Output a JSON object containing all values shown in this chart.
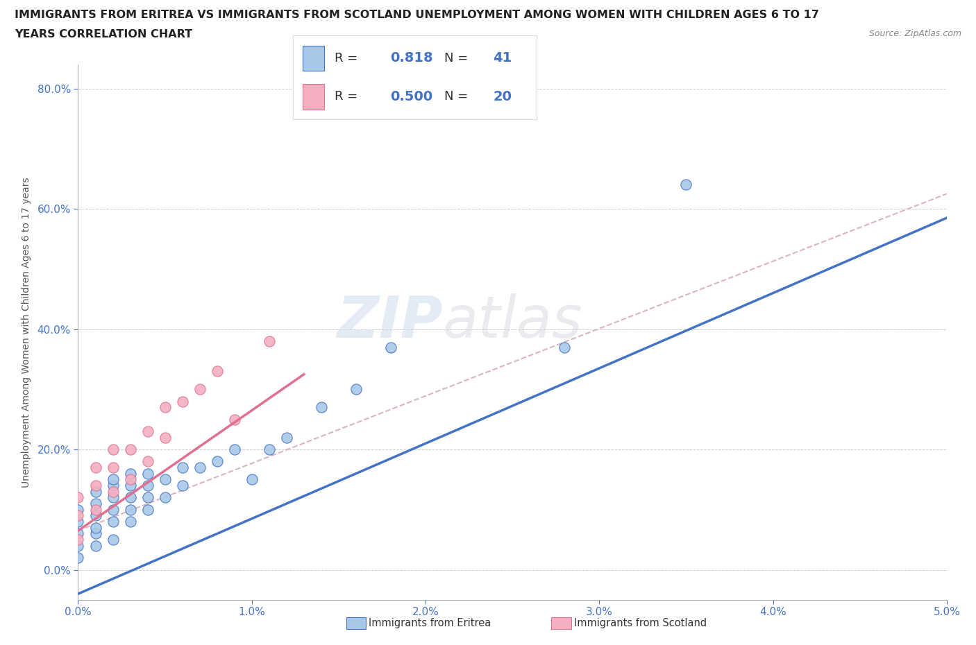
{
  "title_line1": "IMMIGRANTS FROM ERITREA VS IMMIGRANTS FROM SCOTLAND UNEMPLOYMENT AMONG WOMEN WITH CHILDREN AGES 6 TO 17",
  "title_line2": "YEARS CORRELATION CHART",
  "source": "Source: ZipAtlas.com",
  "xlabel": "",
  "ylabel": "Unemployment Among Women with Children Ages 6 to 17 years",
  "xlim": [
    0.0,
    0.05
  ],
  "ylim": [
    -0.05,
    0.84
  ],
  "xticks": [
    0.0,
    0.01,
    0.02,
    0.03,
    0.04,
    0.05
  ],
  "xticklabels": [
    "0.0%",
    "1.0%",
    "2.0%",
    "3.0%",
    "4.0%",
    "5.0%"
  ],
  "yticks": [
    0.0,
    0.2,
    0.4,
    0.6,
    0.8
  ],
  "yticklabels": [
    "0.0%",
    "20.0%",
    "40.0%",
    "60.0%",
    "80.0%"
  ],
  "eritrea_R": 0.818,
  "eritrea_N": 41,
  "scotland_R": 0.5,
  "scotland_N": 20,
  "eritrea_color": "#a8c8e8",
  "scotland_color": "#f4b0c0",
  "eritrea_line_color": "#4472c4",
  "scotland_line_color": "#e07090",
  "diagonal_line_color": "#d4a0b0",
  "background_color": "#ffffff",
  "watermark_zip": "ZIP",
  "watermark_atlas": "atlas",
  "legend_eritrea": "Immigrants from Eritrea",
  "legend_scotland": "Immigrants from Scotland",
  "eritrea_scatter_x": [
    0.0,
    0.0,
    0.0,
    0.0,
    0.0,
    0.001,
    0.001,
    0.001,
    0.001,
    0.001,
    0.001,
    0.002,
    0.002,
    0.002,
    0.002,
    0.002,
    0.002,
    0.003,
    0.003,
    0.003,
    0.003,
    0.003,
    0.004,
    0.004,
    0.004,
    0.004,
    0.005,
    0.005,
    0.006,
    0.006,
    0.007,
    0.008,
    0.009,
    0.01,
    0.011,
    0.012,
    0.014,
    0.016,
    0.018,
    0.028,
    0.035
  ],
  "eritrea_scatter_y": [
    0.02,
    0.04,
    0.06,
    0.08,
    0.1,
    0.04,
    0.06,
    0.07,
    0.09,
    0.11,
    0.13,
    0.05,
    0.08,
    0.1,
    0.12,
    0.14,
    0.15,
    0.08,
    0.1,
    0.12,
    0.14,
    0.16,
    0.1,
    0.12,
    0.14,
    0.16,
    0.12,
    0.15,
    0.14,
    0.17,
    0.17,
    0.18,
    0.2,
    0.15,
    0.2,
    0.22,
    0.27,
    0.3,
    0.37,
    0.37,
    0.64
  ],
  "scotland_scatter_x": [
    0.0,
    0.0,
    0.0,
    0.001,
    0.001,
    0.001,
    0.002,
    0.002,
    0.002,
    0.003,
    0.003,
    0.004,
    0.004,
    0.005,
    0.005,
    0.006,
    0.007,
    0.008,
    0.009,
    0.011
  ],
  "scotland_scatter_y": [
    0.05,
    0.09,
    0.12,
    0.1,
    0.14,
    0.17,
    0.13,
    0.17,
    0.2,
    0.15,
    0.2,
    0.18,
    0.23,
    0.22,
    0.27,
    0.28,
    0.3,
    0.33,
    0.25,
    0.38
  ],
  "eritrea_line_x0": 0.0,
  "eritrea_line_y0": -0.04,
  "eritrea_line_x1": 0.05,
  "eritrea_line_y1": 0.585,
  "scotland_line_x0": 0.0,
  "scotland_line_y0": 0.065,
  "scotland_line_x1": 0.013,
  "scotland_line_y1": 0.325,
  "dash_line_x0": 0.0,
  "dash_line_y0": 0.065,
  "dash_line_x1": 0.05,
  "dash_line_y1": 0.625
}
